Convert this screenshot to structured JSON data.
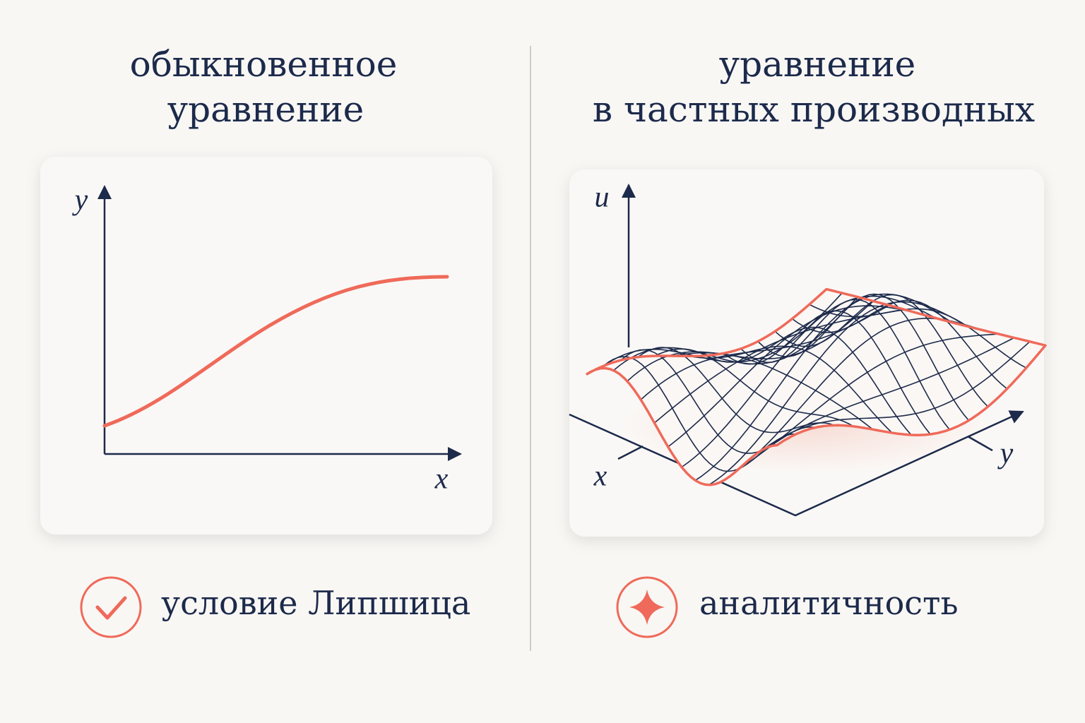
{
  "left": {
    "title": [
      "обыкновенное",
      "уравнение"
    ],
    "axes": {
      "y": "y",
      "x": "x"
    },
    "condition": "условие Липшица"
  },
  "right": {
    "title": [
      "уравнение",
      "в частных производных"
    ],
    "axes": {
      "u": "u",
      "x": "x",
      "y": "y"
    },
    "condition": "аналитичность"
  }
}
